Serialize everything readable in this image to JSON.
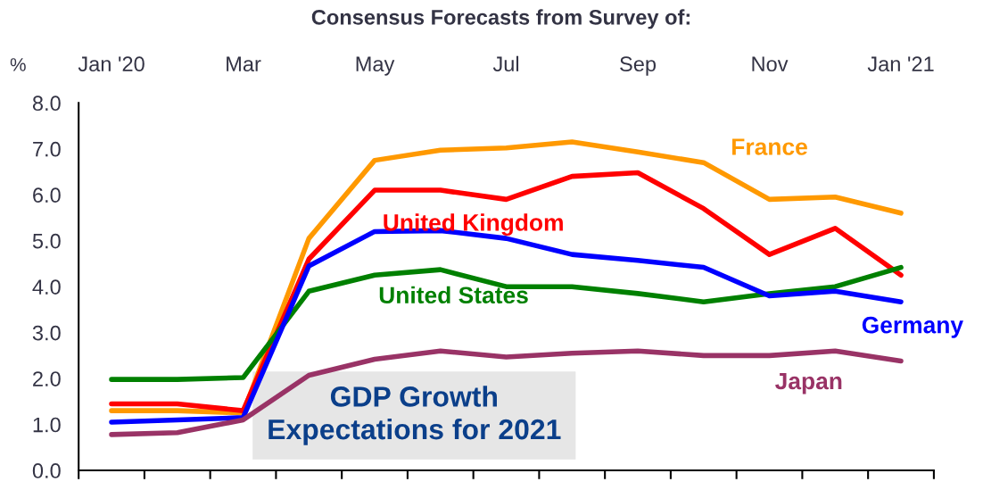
{
  "chart_data": {
    "type": "line",
    "title": "Consensus Forecasts from Survey of:",
    "ylabel": "%",
    "categories": [
      "Jan '20",
      null,
      "Mar",
      null,
      "May",
      null,
      "Jul",
      null,
      "Sep",
      null,
      "Nov",
      null,
      "Jan '21"
    ],
    "ylim": [
      0,
      8
    ],
    "yticks": [
      {
        "value": 0,
        "label": "0.0"
      },
      {
        "value": 1,
        "label": "1.0"
      },
      {
        "value": 2,
        "label": "2.0"
      },
      {
        "value": 3,
        "label": "3.0"
      },
      {
        "value": 4,
        "label": "4.0"
      },
      {
        "value": 5,
        "label": "5.0"
      },
      {
        "value": 6,
        "label": "6.0"
      },
      {
        "value": 7,
        "label": "7.0"
      },
      {
        "value": 8,
        "label": "8.0"
      }
    ],
    "series": [
      {
        "name": "France",
        "color": "#ff9900",
        "values": [
          1.3,
          1.3,
          1.25,
          5.05,
          6.75,
          6.97,
          7.02,
          7.15,
          6.93,
          6.7,
          5.9,
          5.95,
          5.6
        ]
      },
      {
        "name": "United Kingdom",
        "color": "#ff0000",
        "values": [
          1.45,
          1.45,
          1.3,
          4.6,
          6.1,
          6.1,
          5.9,
          6.4,
          6.48,
          5.7,
          4.7,
          5.27,
          4.25
        ]
      },
      {
        "name": "United States",
        "color": "#008000",
        "values": [
          1.98,
          1.98,
          2.02,
          3.9,
          4.25,
          4.37,
          4.0,
          4.0,
          3.85,
          3.67,
          3.85,
          4.0,
          4.42
        ]
      },
      {
        "name": "Germany",
        "color": "#0000ff",
        "values": [
          1.05,
          1.1,
          1.15,
          4.45,
          5.2,
          5.22,
          5.05,
          4.7,
          4.57,
          4.42,
          3.8,
          3.9,
          3.67
        ]
      },
      {
        "name": "Japan",
        "color": "#993366",
        "values": [
          0.78,
          0.82,
          1.1,
          2.07,
          2.42,
          2.6,
          2.47,
          2.55,
          2.6,
          2.5,
          2.5,
          2.6,
          2.38
        ]
      }
    ],
    "annotations": [
      "GDP Growth\nExpectations for 2021"
    ],
    "grid": false,
    "legend": false,
    "marker": "none",
    "line_style": "solid"
  }
}
